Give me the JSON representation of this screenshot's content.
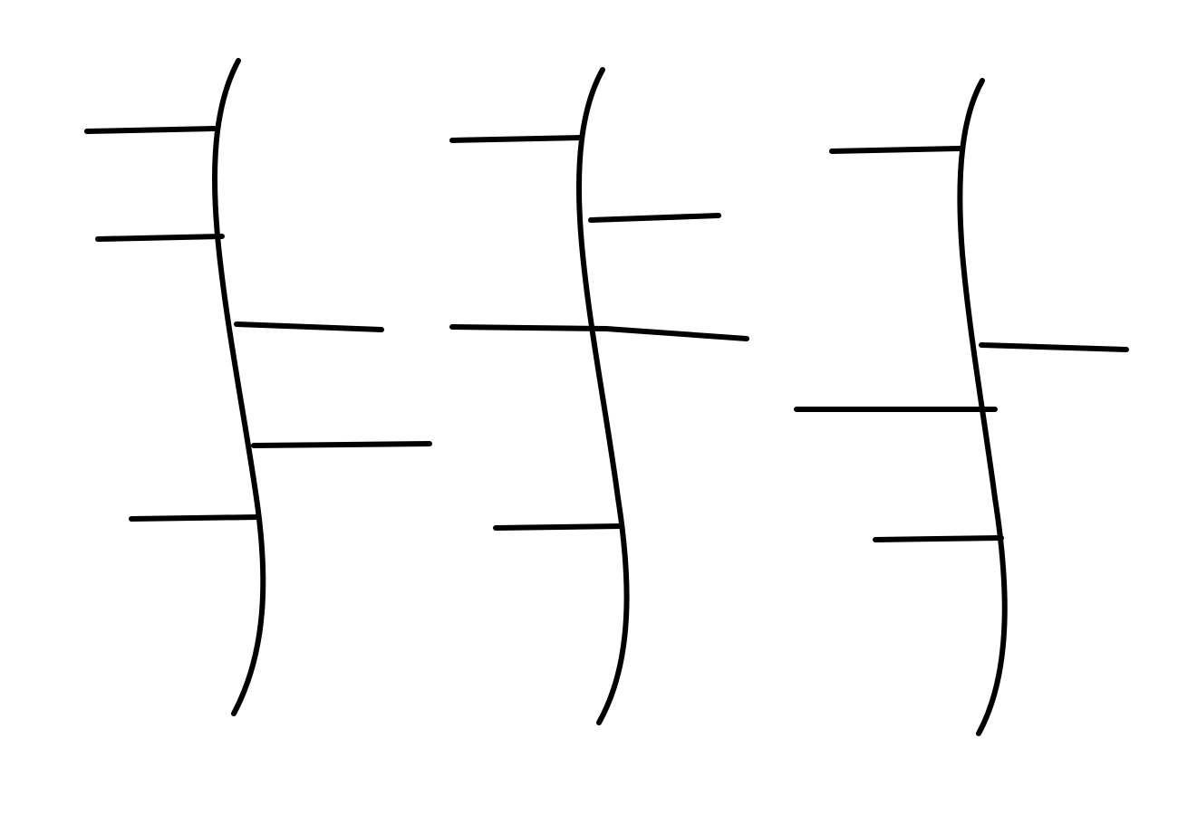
{
  "diagram": {
    "description_kind": "hand-drawn-sketch",
    "colors": {
      "background": "#ffffff",
      "ink": "#000000"
    },
    "strokes": [
      {
        "name": "stroke-1",
        "branches": [
          {
            "side": "left",
            "order": 1
          },
          {
            "side": "left",
            "order": 2
          },
          {
            "side": "right",
            "order": 3
          },
          {
            "side": "right",
            "order": 4
          },
          {
            "side": "left",
            "order": 5
          }
        ]
      },
      {
        "name": "stroke-2",
        "branches": [
          {
            "side": "left",
            "order": 1
          },
          {
            "side": "right",
            "order": 2
          },
          {
            "side": "left",
            "order": 3
          },
          {
            "side": "right",
            "order": 4
          },
          {
            "side": "left",
            "order": 5
          }
        ]
      },
      {
        "name": "stroke-3",
        "branches": [
          {
            "side": "left",
            "order": 1
          },
          {
            "side": "right",
            "order": 2
          },
          {
            "side": "left",
            "order": 3
          },
          {
            "side": "left",
            "order": 4
          }
        ]
      }
    ]
  }
}
